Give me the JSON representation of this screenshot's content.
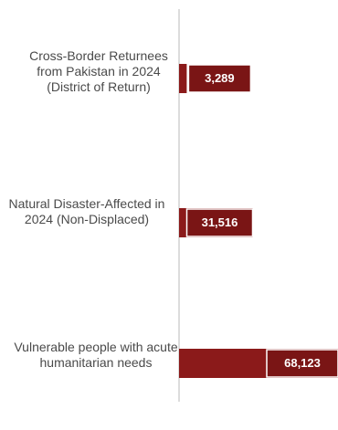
{
  "chart_data": {
    "type": "bar",
    "orientation": "horizontal",
    "categories": [
      "Cross-Border Returnees from Pakistan in 2024 (District of Return)",
      "Natural Disaster-Affected in 2024 (Non-Displaced)",
      "Vulnerable people with acute humanitarian needs"
    ],
    "values": [
      3289,
      31516,
      68123
    ],
    "value_labels": [
      "3,289",
      "31,516",
      "68,123"
    ],
    "colors": {
      "bar": "#8b1a1a",
      "label_box": "#7a1515",
      "axis": "#d0d0d0",
      "text": "#4a4a4a"
    },
    "grid": false,
    "legend": "none"
  }
}
